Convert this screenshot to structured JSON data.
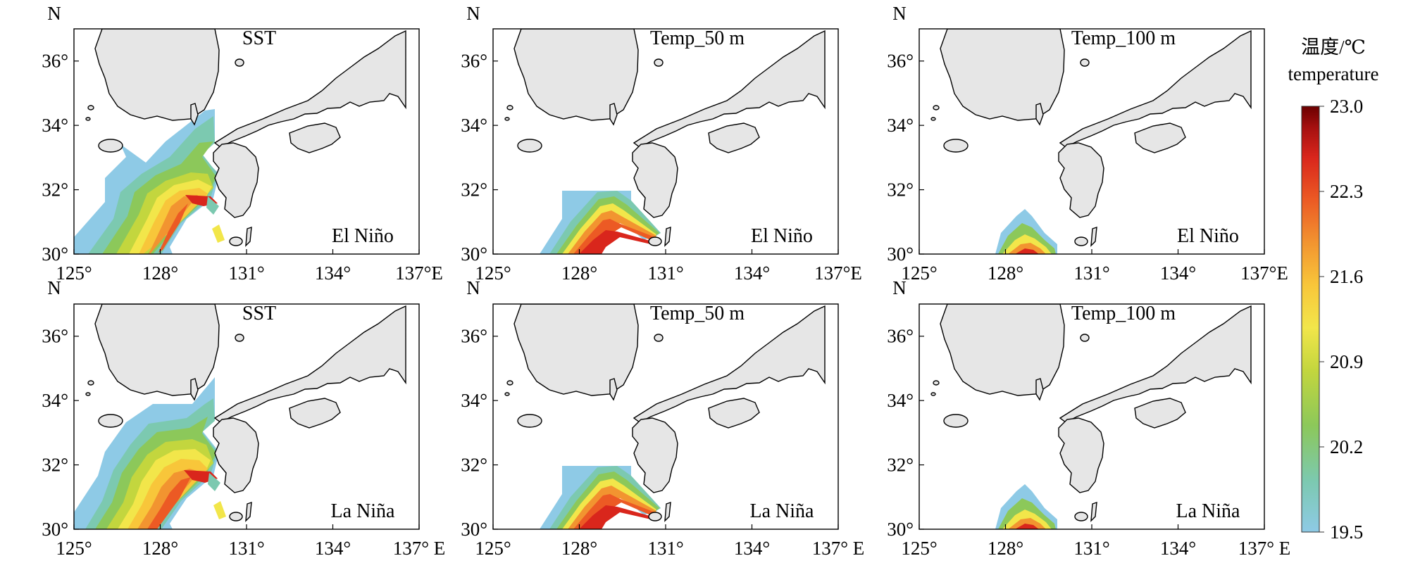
{
  "panels": [
    {
      "title": "SST",
      "phase": "El Niño"
    },
    {
      "title": "Temp_50 m",
      "phase": "El Niño"
    },
    {
      "title": "Temp_100 m",
      "phase": "El Niño"
    },
    {
      "title": "SST",
      "phase": "La Niña"
    },
    {
      "title": "Temp_50 m",
      "phase": "La Niña"
    },
    {
      "title": "Temp_100 m",
      "phase": "La Niña"
    }
  ],
  "axes": {
    "north_label": "N",
    "lat_ticks": [
      "30°",
      "32°",
      "34°",
      "36°"
    ],
    "lon_ticks_top": [
      "125°",
      "128°",
      "131°",
      "134°",
      "137°E"
    ],
    "lon_ticks_bottom": [
      "125°",
      "128°",
      "131°",
      "134°",
      "137° E"
    ],
    "lon_range": [
      125,
      137
    ],
    "lat_range": [
      30,
      37
    ]
  },
  "colorbar": {
    "title_cn": "温度/℃",
    "title_en": "temperature",
    "ticks": [
      "23.0",
      "22.3",
      "21.6",
      "20.9",
      "20.2",
      "19.5"
    ],
    "range": [
      19.5,
      23.0
    ]
  },
  "colors": {
    "land": "#e6e6e6",
    "colormap": [
      "#8ecae6",
      "#7cc9b0",
      "#8cc85a",
      "#c3d63e",
      "#f2e64a",
      "#f8c63a",
      "#f29430",
      "#ec5a24",
      "#d9261c",
      "#a51010",
      "#6b0000"
    ]
  }
}
